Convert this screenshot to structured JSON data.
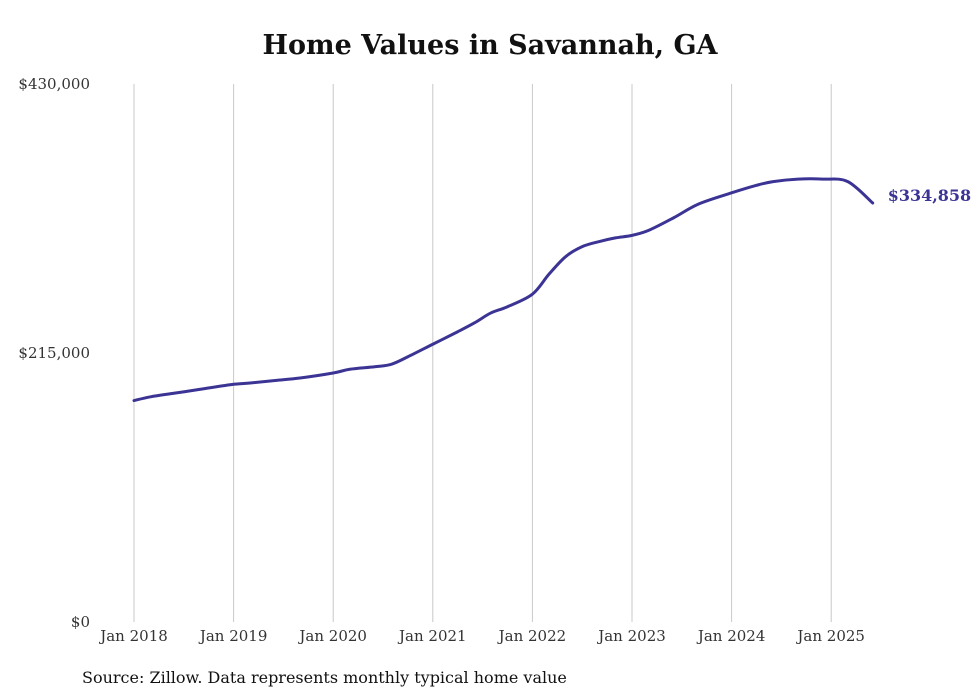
{
  "source_note": "Source: Zillow. Data represents monthly typical home value",
  "colors": {
    "line": "#3b3494",
    "grid": "#c8c8c8",
    "text": "#333333"
  },
  "chart_data": {
    "type": "line",
    "title": "Home Values in Savannah, GA",
    "xlabel": "",
    "ylabel": "",
    "grid": "vertical",
    "ylim": [
      0,
      430000
    ],
    "yticks": [
      0,
      215000,
      430000
    ],
    "ytick_labels": [
      "$0",
      "$215,000",
      "$430,000"
    ],
    "xtick_labels": [
      "Jan 2018",
      "Jan 2019",
      "Jan 2020",
      "Jan 2021",
      "Jan 2022",
      "Jan 2023",
      "Jan 2024",
      "Jan 2025"
    ],
    "end_label": "$334,858",
    "series": [
      {
        "x": [
          "2018-01",
          "2018-03",
          "2018-06",
          "2018-09",
          "2019-01",
          "2019-03",
          "2019-06",
          "2019-09",
          "2020-01",
          "2020-03",
          "2020-06",
          "2020-08",
          "2020-10",
          "2021-01",
          "2021-04",
          "2021-06",
          "2021-08",
          "2021-10",
          "2022-01",
          "2022-03",
          "2022-05",
          "2022-07",
          "2022-09",
          "2022-11",
          "2023-01",
          "2023-03",
          "2023-06",
          "2023-09",
          "2024-01",
          "2024-04",
          "2024-06",
          "2024-09",
          "2024-12",
          "2025-03",
          "2025-06"
        ],
        "values": [
          177000,
          180000,
          183000,
          186000,
          190000,
          191000,
          193000,
          195000,
          199000,
          202000,
          204000,
          206000,
          212000,
          222000,
          232000,
          239000,
          247000,
          252000,
          262000,
          278000,
          292000,
          300000,
          304000,
          307000,
          309000,
          313000,
          323000,
          334000,
          343000,
          349000,
          352000,
          354000,
          354000,
          352000,
          334858
        ]
      }
    ]
  }
}
